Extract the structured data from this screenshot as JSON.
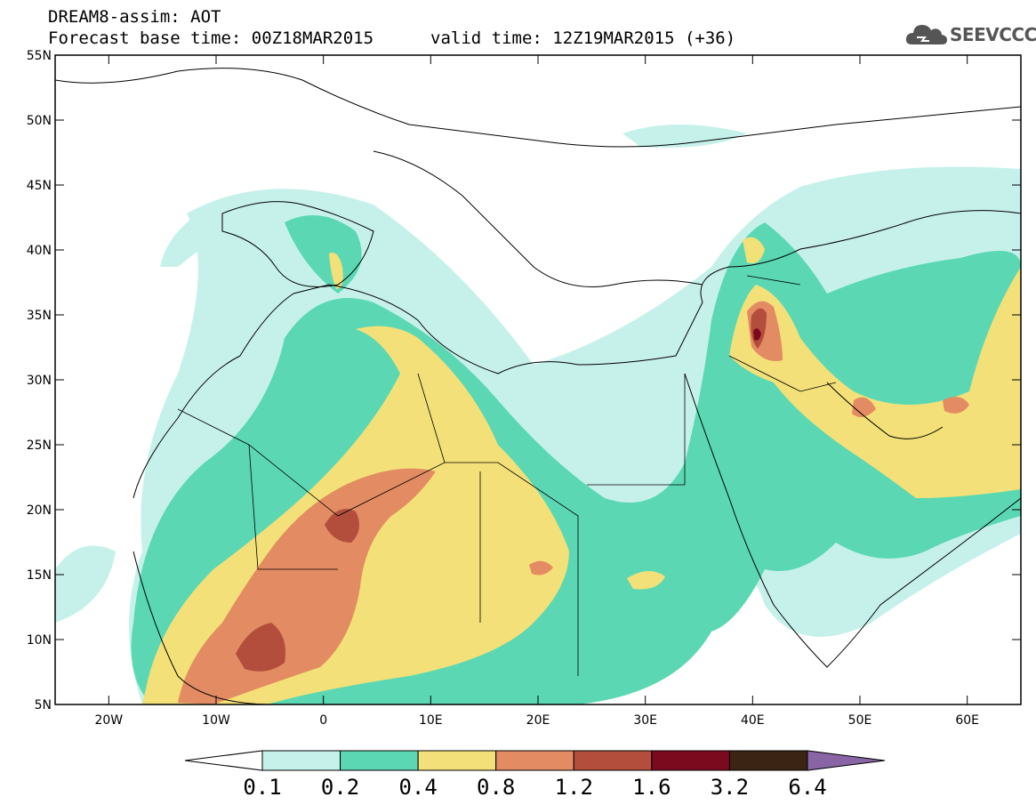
{
  "header": {
    "model_title": "DREAM8-assim: AOT",
    "base_time": "Forecast base time: 00Z18MAR2015",
    "valid_time": "valid time: 12Z19MAR2015 (+36)",
    "logo_text": "SEEVCCC",
    "logo_icon": "cloud-icon"
  },
  "map": {
    "lat_labels": [
      "55N",
      "50N",
      "45N",
      "40N",
      "35N",
      "30N",
      "25N",
      "20N",
      "15N",
      "10N",
      "5N"
    ],
    "lat_values": [
      55,
      50,
      45,
      40,
      35,
      30,
      25,
      20,
      15,
      10,
      5
    ],
    "lon_labels": [
      "20W",
      "10W",
      "0",
      "10E",
      "20E",
      "30E",
      "40E",
      "50E",
      "60E"
    ],
    "lon_values": [
      -20,
      -10,
      0,
      10,
      20,
      30,
      40,
      50,
      60
    ],
    "extent": {
      "lon_min": -25,
      "lon_max": 65,
      "lat_min": 5,
      "lat_max": 55
    }
  },
  "colorbar": {
    "labels": [
      "0.1",
      "0.2",
      "0.4",
      "0.8",
      "1.2",
      "1.6",
      "3.2",
      "6.4"
    ],
    "colors": [
      "#ffffff",
      "#c6f1eb",
      "#5bd8b3",
      "#f4e078",
      "#e38b63",
      "#b24e3b",
      "#7c0a1e",
      "#3b2413",
      "#8a65a6"
    ]
  }
}
